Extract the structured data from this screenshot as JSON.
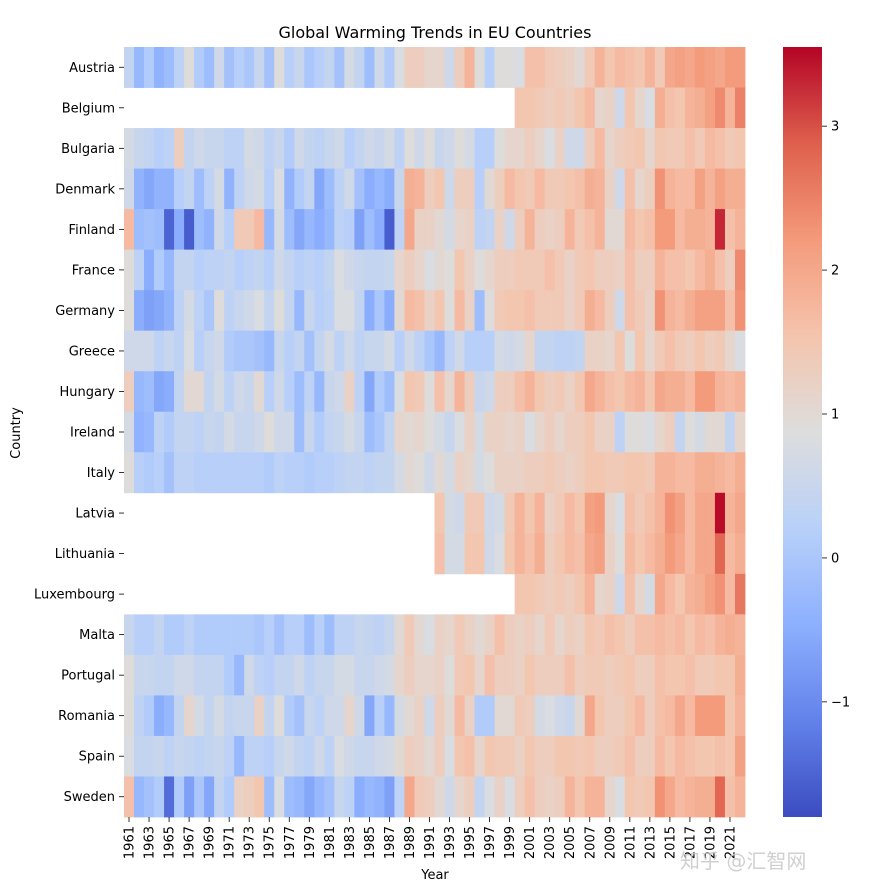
{
  "chart_data": {
    "type": "heatmap",
    "title": "Global Warming Trends in EU Countries",
    "xlabel": "Year",
    "ylabel": "Country",
    "years_start": 1961,
    "years_end": 2022,
    "x_tick_labels": [
      "1961",
      "1963",
      "1965",
      "1967",
      "1969",
      "1971",
      "1973",
      "1975",
      "1977",
      "1979",
      "1981",
      "1983",
      "1985",
      "1987",
      "1989",
      "1991",
      "1993",
      "1995",
      "1997",
      "1999",
      "2001",
      "2003",
      "2005",
      "2007",
      "2009",
      "2011",
      "2013",
      "2015",
      "2017",
      "2019",
      "2021"
    ],
    "colorbar": {
      "colormap": "coolwarm",
      "vmin": -1.8,
      "vmax": 3.55,
      "ticks": [
        -1,
        0,
        1,
        2,
        3
      ],
      "tick_labels": [
        "−1",
        "0",
        "1",
        "2",
        "3"
      ]
    },
    "rows": [
      {
        "country": "Austria",
        "start_year": 1961,
        "values": [
          0.4,
          -0.3,
          0.1,
          -0.4,
          -0.2,
          0.3,
          0.9,
          0.1,
          -0.2,
          0.6,
          -0.1,
          0.2,
          0.0,
          0.5,
          -0.1,
          0.9,
          0.2,
          0.5,
          0.0,
          0.2,
          0.4,
          -0.1,
          0.7,
          0.4,
          -0.2,
          0.6,
          0.1,
          0.8,
          1.3,
          1.3,
          1.1,
          1.1,
          0.6,
          1.3,
          1.8,
          0.9,
          0.2,
          0.9,
          0.9,
          0.8,
          1.6,
          1.6,
          1.4,
          1.3,
          1.2,
          1.0,
          1.4,
          1.8,
          1.5,
          1.7,
          1.6,
          1.5,
          1.8,
          1.4,
          2.0,
          2.1,
          2.0,
          2.2,
          2.1,
          2.0,
          2.2,
          2.2
        ]
      },
      {
        "country": "Belgium",
        "start_year": 2000,
        "values": [
          1.5,
          1.5,
          1.4,
          1.3,
          1.4,
          1.3,
          1.5,
          1.7,
          1.1,
          1.2,
          0.6,
          1.5,
          1.1,
          0.8,
          1.9,
          1.6,
          1.5,
          1.8,
          1.9,
          2.1,
          2.4,
          1.8,
          2.5
        ]
      },
      {
        "country": "Bulgaria",
        "start_year": 1961,
        "values": [
          0.7,
          0.5,
          0.4,
          0.2,
          0.3,
          1.3,
          0.4,
          0.6,
          0.5,
          0.5,
          0.3,
          0.3,
          0.7,
          0.6,
          0.3,
          0.5,
          0.1,
          0.6,
          0.4,
          0.3,
          0.5,
          0.6,
          0.2,
          0.4,
          0.6,
          0.5,
          0.7,
          0.3,
          0.9,
          0.6,
          0.9,
          0.5,
          0.6,
          0.9,
          0.7,
          0.2,
          0.2,
          0.9,
          1.1,
          1.1,
          1.3,
          1.1,
          0.8,
          1.2,
          0.6,
          0.6,
          1.3,
          1.7,
          1.1,
          1.3,
          1.4,
          1.5,
          1.1,
          1.5,
          1.4,
          1.4,
          1.6,
          1.4,
          1.7,
          1.6,
          1.4,
          1.5
        ]
      },
      {
        "country": "Denmark",
        "start_year": 1961,
        "values": [
          0.6,
          -0.4,
          -0.6,
          -0.4,
          -0.4,
          0.2,
          0.4,
          -0.2,
          0.3,
          0.7,
          -0.4,
          0.3,
          0.6,
          0.7,
          0.2,
          0.8,
          -0.4,
          0.1,
          0.4,
          -0.6,
          -0.2,
          0.3,
          0.6,
          -0.1,
          -0.5,
          -0.3,
          -0.5,
          0.5,
          1.9,
          1.8,
          1.3,
          1.5,
          0.6,
          1.3,
          1.3,
          0.2,
          1.0,
          1.3,
          1.7,
          1.5,
          1.4,
          1.7,
          1.4,
          1.4,
          1.5,
          1.6,
          1.9,
          1.8,
          1.2,
          0.6,
          1.6,
          1.1,
          1.3,
          2.3,
          1.8,
          1.7,
          1.7,
          2.1,
          1.8,
          2.1,
          1.9,
          1.9
        ]
      },
      {
        "country": "Finland",
        "start_year": 1961,
        "values": [
          1.7,
          -0.2,
          -0.1,
          -0.2,
          -1.5,
          -0.5,
          -1.6,
          -0.2,
          -0.4,
          0.6,
          0.2,
          1.4,
          1.4,
          1.7,
          -0.3,
          0.7,
          -0.2,
          -0.6,
          -0.3,
          -0.5,
          -0.3,
          0.3,
          0.2,
          -0.7,
          -0.2,
          -0.5,
          -1.6,
          0.3,
          2.0,
          1.2,
          1.2,
          1.0,
          0.7,
          1.1,
          1.2,
          0.3,
          0.4,
          1.2,
          0.6,
          1.3,
          1.8,
          1.3,
          1.2,
          1.3,
          1.8,
          1.4,
          1.6,
          1.8,
          1.0,
          1.0,
          1.7,
          1.5,
          1.6,
          2.2,
          2.2,
          1.7,
          1.9,
          1.9,
          1.8,
          3.3,
          1.6,
          1.8
        ]
      },
      {
        "country": "France",
        "start_year": 1961,
        "values": [
          0.9,
          0.3,
          -0.5,
          0.1,
          -0.3,
          0.4,
          0.4,
          0.2,
          0.3,
          0.3,
          0.4,
          0.2,
          0.3,
          0.4,
          0.2,
          0.6,
          0.4,
          0.2,
          0.3,
          0.2,
          0.4,
          0.8,
          0.6,
          0.5,
          0.4,
          0.4,
          0.5,
          1.1,
          1.3,
          1.1,
          0.8,
          1.0,
          0.9,
          1.5,
          1.2,
          0.9,
          1.1,
          1.3,
          1.3,
          1.4,
          1.4,
          1.4,
          1.6,
          1.4,
          1.2,
          1.4,
          1.5,
          1.3,
          1.3,
          1.2,
          1.6,
          1.3,
          1.3,
          1.8,
          1.6,
          1.6,
          1.5,
          1.7,
          1.9,
          1.6,
          1.3,
          2.4
        ]
      },
      {
        "country": "Germany",
        "start_year": 1961,
        "values": [
          0.9,
          -0.5,
          -0.7,
          -0.6,
          -0.4,
          0.3,
          0.7,
          0.3,
          0.0,
          0.9,
          0.3,
          0.5,
          0.6,
          0.8,
          0.4,
          0.9,
          0.4,
          -0.3,
          0.5,
          0.2,
          0.3,
          0.8,
          0.8,
          0.4,
          -0.5,
          0.0,
          -0.5,
          1.0,
          1.7,
          1.6,
          1.2,
          1.5,
          0.9,
          1.7,
          1.2,
          -0.2,
          0.9,
          1.4,
          1.5,
          1.5,
          1.6,
          1.4,
          1.4,
          1.4,
          1.2,
          1.4,
          1.9,
          1.7,
          1.3,
          0.6,
          1.6,
          1.4,
          1.2,
          2.3,
          1.8,
          1.7,
          1.9,
          2.1,
          2.1,
          2.1,
          1.6,
          2.3
        ]
      },
      {
        "country": "Greece",
        "start_year": 1961,
        "values": [
          0.6,
          0.6,
          0.6,
          0.3,
          0.5,
          0.3,
          0.8,
          0.2,
          0.5,
          0.6,
          0.1,
          0.0,
          0.0,
          -0.1,
          -0.3,
          0.5,
          0.2,
          0.4,
          -0.1,
          0.4,
          0.7,
          0.3,
          0.6,
          0.3,
          0.5,
          0.5,
          0.7,
          0.2,
          0.6,
          0.3,
          0.0,
          -0.3,
          0.3,
          0.6,
          0.2,
          0.2,
          0.2,
          0.7,
          0.6,
          0.7,
          1.1,
          0.4,
          0.4,
          0.3,
          0.3,
          0.4,
          1.2,
          1.2,
          1.1,
          1.5,
          0.9,
          1.5,
          1.1,
          1.4,
          1.6,
          1.4,
          1.3,
          1.5,
          1.3,
          1.4,
          1.1,
          0.8
        ]
      },
      {
        "country": "Hungary",
        "start_year": 1961,
        "values": [
          1.3,
          -0.3,
          -0.2,
          -0.6,
          -0.5,
          0.4,
          1.0,
          1.0,
          0.4,
          0.7,
          0.3,
          0.6,
          0.5,
          1.0,
          0.2,
          0.6,
          0.2,
          -0.2,
          0.3,
          -0.3,
          0.5,
          0.6,
          1.2,
          0.3,
          -0.6,
          0.1,
          -0.2,
          0.8,
          1.5,
          1.4,
          0.9,
          1.6,
          1.1,
          1.8,
          1.3,
          0.5,
          0.6,
          1.3,
          1.3,
          1.6,
          1.8,
          1.5,
          1.3,
          1.4,
          1.2,
          1.5,
          2.0,
          1.8,
          1.6,
          1.5,
          1.7,
          1.8,
          1.5,
          2.0,
          1.9,
          1.9,
          1.7,
          2.2,
          2.2,
          1.8,
          1.7,
          1.8
        ]
      },
      {
        "country": "Ireland",
        "start_year": 1961,
        "values": [
          0.7,
          -0.4,
          -0.3,
          0.3,
          0.1,
          0.4,
          0.4,
          0.3,
          0.5,
          0.4,
          0.7,
          0.5,
          0.5,
          0.6,
          0.9,
          0.6,
          0.6,
          -0.2,
          0.5,
          0.1,
          0.4,
          0.5,
          0.7,
          0.5,
          -0.2,
          0.0,
          0.4,
          1.1,
          1.0,
          1.1,
          0.9,
          0.7,
          0.5,
          0.8,
          1.2,
          0.7,
          1.2,
          1.2,
          1.1,
          1.2,
          0.8,
          1.1,
          1.3,
          1.1,
          1.3,
          1.3,
          1.5,
          1.2,
          1.2,
          0.3,
          0.9,
          0.9,
          0.8,
          1.1,
          1.3,
          0.4,
          0.9,
          0.7,
          1.0,
          1.0,
          0.4,
          1.1
        ]
      },
      {
        "country": "Italy",
        "start_year": 1961,
        "values": [
          0.9,
          0.2,
          0.1,
          0.2,
          -0.1,
          0.3,
          0.3,
          0.2,
          0.2,
          0.2,
          0.2,
          0.2,
          0.2,
          0.2,
          0.1,
          0.3,
          0.2,
          0.2,
          0.1,
          0.2,
          0.2,
          0.3,
          0.4,
          0.4,
          0.3,
          0.4,
          0.4,
          0.7,
          1.0,
          0.9,
          0.6,
          1.0,
          0.7,
          1.2,
          1.1,
          0.7,
          0.9,
          1.2,
          1.2,
          1.2,
          1.3,
          1.3,
          1.4,
          1.3,
          1.2,
          1.3,
          1.5,
          1.5,
          1.4,
          1.4,
          1.5,
          1.5,
          1.4,
          1.8,
          1.8,
          1.7,
          1.7,
          1.9,
          1.9,
          1.8,
          1.7,
          1.9
        ]
      },
      {
        "country": "Latvia",
        "start_year": 1992,
        "values": [
          1.5,
          0.7,
          0.6,
          1.4,
          1.4,
          0.6,
          0.7,
          1.4,
          1.8,
          1.5,
          1.8,
          1.2,
          1.4,
          1.7,
          1.5,
          2.1,
          2.2,
          1.1,
          0.8,
          1.6,
          1.4,
          1.6,
          1.8,
          2.3,
          2.1,
          1.7,
          2.0,
          2.0,
          3.5,
          1.8,
          2.0
        ]
      },
      {
        "country": "Lithuania",
        "start_year": 1992,
        "values": [
          1.6,
          0.7,
          0.7,
          1.5,
          1.5,
          0.6,
          0.8,
          1.5,
          1.8,
          1.6,
          1.9,
          1.3,
          1.5,
          1.7,
          1.6,
          2.0,
          2.1,
          1.2,
          0.9,
          1.7,
          1.5,
          1.7,
          1.9,
          2.2,
          2.0,
          1.7,
          2.0,
          2.0,
          2.8,
          1.7,
          1.9
        ]
      },
      {
        "country": "Luxembourg",
        "start_year": 2000,
        "values": [
          1.5,
          1.5,
          1.4,
          1.3,
          1.4,
          1.3,
          1.5,
          1.8,
          1.1,
          1.2,
          0.6,
          1.6,
          1.1,
          0.7,
          2.0,
          1.7,
          1.5,
          1.8,
          1.9,
          2.1,
          2.3,
          1.7,
          2.6
        ]
      },
      {
        "country": "Malta",
        "start_year": 1961,
        "values": [
          0.5,
          0.2,
          0.2,
          0.4,
          0.1,
          0.1,
          0.3,
          0.1,
          0.1,
          0.1,
          0.1,
          0.1,
          0.1,
          0.0,
          0.2,
          -0.1,
          0.2,
          0.2,
          -0.2,
          0.2,
          -0.2,
          0.3,
          0.3,
          0.5,
          0.4,
          0.3,
          0.5,
          1.0,
          1.4,
          1.0,
          0.8,
          1.2,
          1.1,
          1.4,
          1.2,
          1.0,
          1.2,
          1.6,
          1.3,
          1.2,
          1.3,
          1.1,
          1.4,
          1.1,
          1.3,
          1.2,
          1.5,
          1.4,
          1.6,
          1.5,
          1.3,
          1.6,
          1.6,
          1.7,
          1.6,
          1.7,
          1.5,
          1.7,
          1.6,
          1.8,
          1.9,
          1.8
        ]
      },
      {
        "country": "Portugal",
        "start_year": 1961,
        "values": [
          0.9,
          0.5,
          0.5,
          0.4,
          0.4,
          0.6,
          0.6,
          0.4,
          0.4,
          0.4,
          0.1,
          -0.3,
          0.6,
          0.3,
          0.2,
          0.4,
          0.4,
          0.6,
          0.3,
          0.5,
          0.5,
          0.7,
          0.7,
          0.5,
          0.5,
          0.6,
          0.7,
          1.1,
          1.3,
          1.1,
          1.1,
          1.2,
          0.9,
          1.4,
          1.5,
          1.1,
          1.6,
          1.3,
          1.3,
          1.2,
          1.5,
          1.3,
          1.3,
          1.3,
          1.6,
          1.3,
          1.4,
          1.4,
          1.3,
          1.4,
          1.5,
          1.3,
          1.3,
          1.6,
          1.5,
          1.5,
          1.6,
          1.4,
          1.4,
          1.5,
          1.5,
          1.9
        ]
      },
      {
        "country": "Romania",
        "start_year": 1961,
        "values": [
          0.9,
          0.3,
          0.1,
          -0.5,
          -0.3,
          0.4,
          1.1,
          0.7,
          0.4,
          0.7,
          0.4,
          0.5,
          0.5,
          1.2,
          0.4,
          0.9,
          0.1,
          -0.1,
          0.5,
          0.3,
          0.6,
          0.6,
          1.1,
          0.6,
          -0.6,
          0.2,
          -0.3,
          0.7,
          1.0,
          1.2,
          0.6,
          1.3,
          1.0,
          1.7,
          1.2,
          0.1,
          0.1,
          1.0,
          1.0,
          1.4,
          1.3,
          0.7,
          0.8,
          0.6,
          0.5,
          1.0,
          2.0,
          1.5,
          1.3,
          1.3,
          1.5,
          1.7,
          1.3,
          1.6,
          1.7,
          2.0,
          1.7,
          2.2,
          2.2,
          2.2,
          1.5,
          1.8
        ]
      },
      {
        "country": "Spain",
        "start_year": 1961,
        "values": [
          0.8,
          0.4,
          0.4,
          0.5,
          0.3,
          0.5,
          0.4,
          0.3,
          0.4,
          0.5,
          0.3,
          -0.3,
          0.3,
          0.3,
          0.2,
          0.5,
          0.6,
          0.4,
          0.3,
          0.6,
          0.3,
          0.8,
          0.6,
          0.5,
          0.5,
          0.6,
          0.7,
          1.0,
          1.3,
          1.2,
          1.0,
          1.3,
          0.8,
          1.5,
          1.6,
          1.1,
          1.5,
          1.4,
          1.4,
          1.2,
          1.5,
          1.3,
          1.3,
          1.5,
          1.5,
          1.4,
          1.5,
          1.3,
          1.3,
          1.4,
          1.6,
          1.3,
          1.3,
          1.7,
          1.5,
          1.7,
          1.6,
          1.5,
          1.5,
          1.6,
          1.5,
          2.1
        ]
      },
      {
        "country": "Sweden",
        "start_year": 1961,
        "values": [
          1.6,
          -0.3,
          -0.1,
          0.1,
          -1.4,
          0.1,
          -0.7,
          0.0,
          -0.6,
          0.4,
          0.1,
          1.2,
          1.3,
          1.5,
          -0.2,
          0.8,
          -0.2,
          -0.3,
          -0.6,
          -0.3,
          -0.1,
          0.5,
          0.3,
          -0.5,
          -0.3,
          -0.4,
          -0.7,
          0.3,
          2.0,
          1.4,
          1.3,
          1.0,
          0.6,
          1.1,
          1.3,
          0.4,
          0.8,
          1.2,
          0.8,
          1.3,
          1.6,
          1.3,
          1.2,
          1.3,
          1.8,
          1.5,
          1.8,
          1.8,
          1.1,
          0.8,
          1.5,
          1.4,
          1.5,
          2.3,
          2.0,
          1.7,
          1.8,
          1.9,
          1.9,
          2.8,
          1.6,
          1.8
        ]
      }
    ]
  }
}
